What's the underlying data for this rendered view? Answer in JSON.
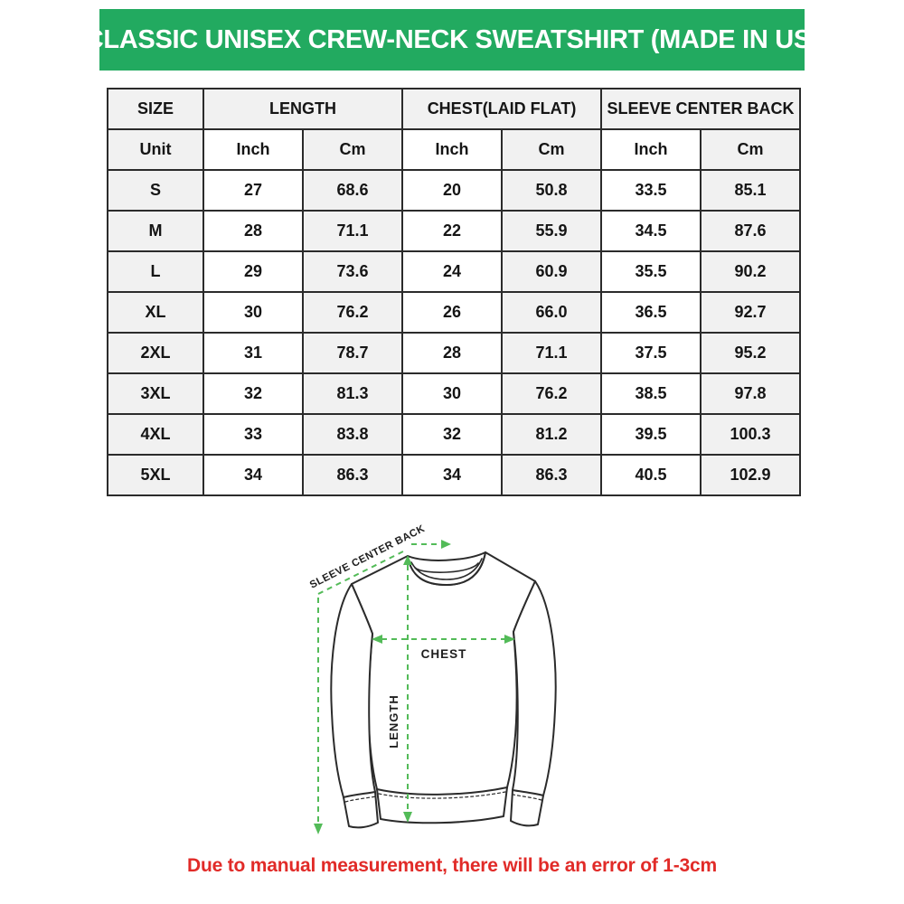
{
  "header": {
    "title": "CLASSIC UNISEX CREW-NECK SWEATSHIRT (MADE IN US)",
    "bg_color": "#22aa60",
    "text_color": "#ffffff"
  },
  "size_chart": {
    "column_groups": [
      {
        "label": "SIZE",
        "span": 1
      },
      {
        "label": "LENGTH",
        "span": 2
      },
      {
        "label": "CHEST(LAID FLAT)",
        "span": 2
      },
      {
        "label": "SLEEVE CENTER BACK",
        "span": 2
      }
    ],
    "unit_row": [
      "Unit",
      "Inch",
      "Cm",
      "Inch",
      "Cm",
      "Inch",
      "Cm"
    ],
    "rows": [
      {
        "size": "S",
        "values": [
          "27",
          "68.6",
          "20",
          "50.8",
          "33.5",
          "85.1"
        ]
      },
      {
        "size": "M",
        "values": [
          "28",
          "71.1",
          "22",
          "55.9",
          "34.5",
          "87.6"
        ]
      },
      {
        "size": "L",
        "values": [
          "29",
          "73.6",
          "24",
          "60.9",
          "35.5",
          "90.2"
        ]
      },
      {
        "size": "XL",
        "values": [
          "30",
          "76.2",
          "26",
          "66.0",
          "36.5",
          "92.7"
        ]
      },
      {
        "size": "2XL",
        "values": [
          "31",
          "78.7",
          "28",
          "71.1",
          "37.5",
          "95.2"
        ]
      },
      {
        "size": "3XL",
        "values": [
          "32",
          "81.3",
          "30",
          "76.2",
          "38.5",
          "97.8"
        ]
      },
      {
        "size": "4XL",
        "values": [
          "33",
          "83.8",
          "32",
          "81.2",
          "39.5",
          "100.3"
        ]
      },
      {
        "size": "5XL",
        "values": [
          "34",
          "86.3",
          "34",
          "86.3",
          "40.5",
          "102.9"
        ]
      }
    ],
    "grid_color": "#2b2b2b",
    "shaded_cell_color": "#f1f1f1"
  },
  "diagram": {
    "sleeve_label": "SLEEVE CENTER BACK",
    "chest_label": "CHEST",
    "length_label": "LENGTH",
    "arrow_color": "#53bb58",
    "outline_color": "#2b2b2b"
  },
  "footer": {
    "note": "Due to manual measurement, there will be an error of 1-3cm",
    "color": "#e12b28"
  }
}
